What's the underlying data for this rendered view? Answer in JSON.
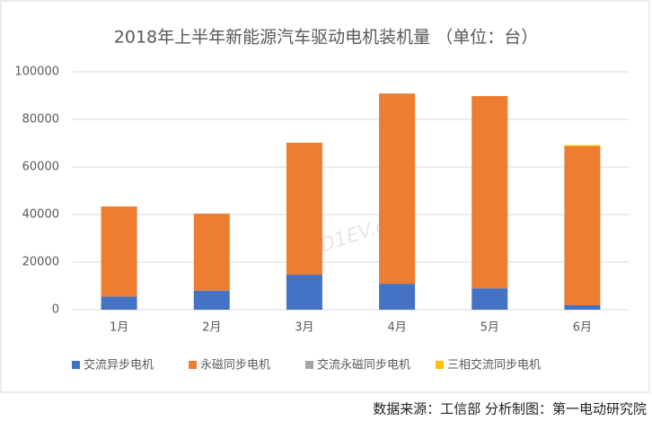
{
  "chart_data": {
    "type": "stacked_bar",
    "title": "2018年上半年新能源汽车驱动电机装机量 （单位：台）",
    "categories": [
      "1月",
      "2月",
      "3月",
      "4月",
      "5月",
      "6月"
    ],
    "series": [
      {
        "name": "交流异步电机",
        "color": "#4472c4",
        "values": [
          5500,
          8000,
          14700,
          10900,
          9000,
          1900
        ]
      },
      {
        "name": "永磁同步电机",
        "color": "#ed7d31",
        "values": [
          37900,
          32400,
          55500,
          80000,
          80800,
          66800
        ]
      },
      {
        "name": "交流永磁同步电机",
        "color": "#a5a5a5",
        "values": [
          0,
          0,
          0,
          0,
          0,
          0
        ]
      },
      {
        "name": "三相交流同步电机",
        "color": "#ffc000",
        "values": [
          0,
          0,
          0,
          0,
          0,
          500
        ]
      }
    ],
    "ylim": [
      0,
      100000
    ],
    "yticks": [
      0,
      20000,
      40000,
      60000,
      80000,
      100000
    ],
    "grid": true,
    "legend": "bottom",
    "watermark": "D1EV.com",
    "source": "数据来源：工信部 分析制图：第一电动研究院"
  }
}
